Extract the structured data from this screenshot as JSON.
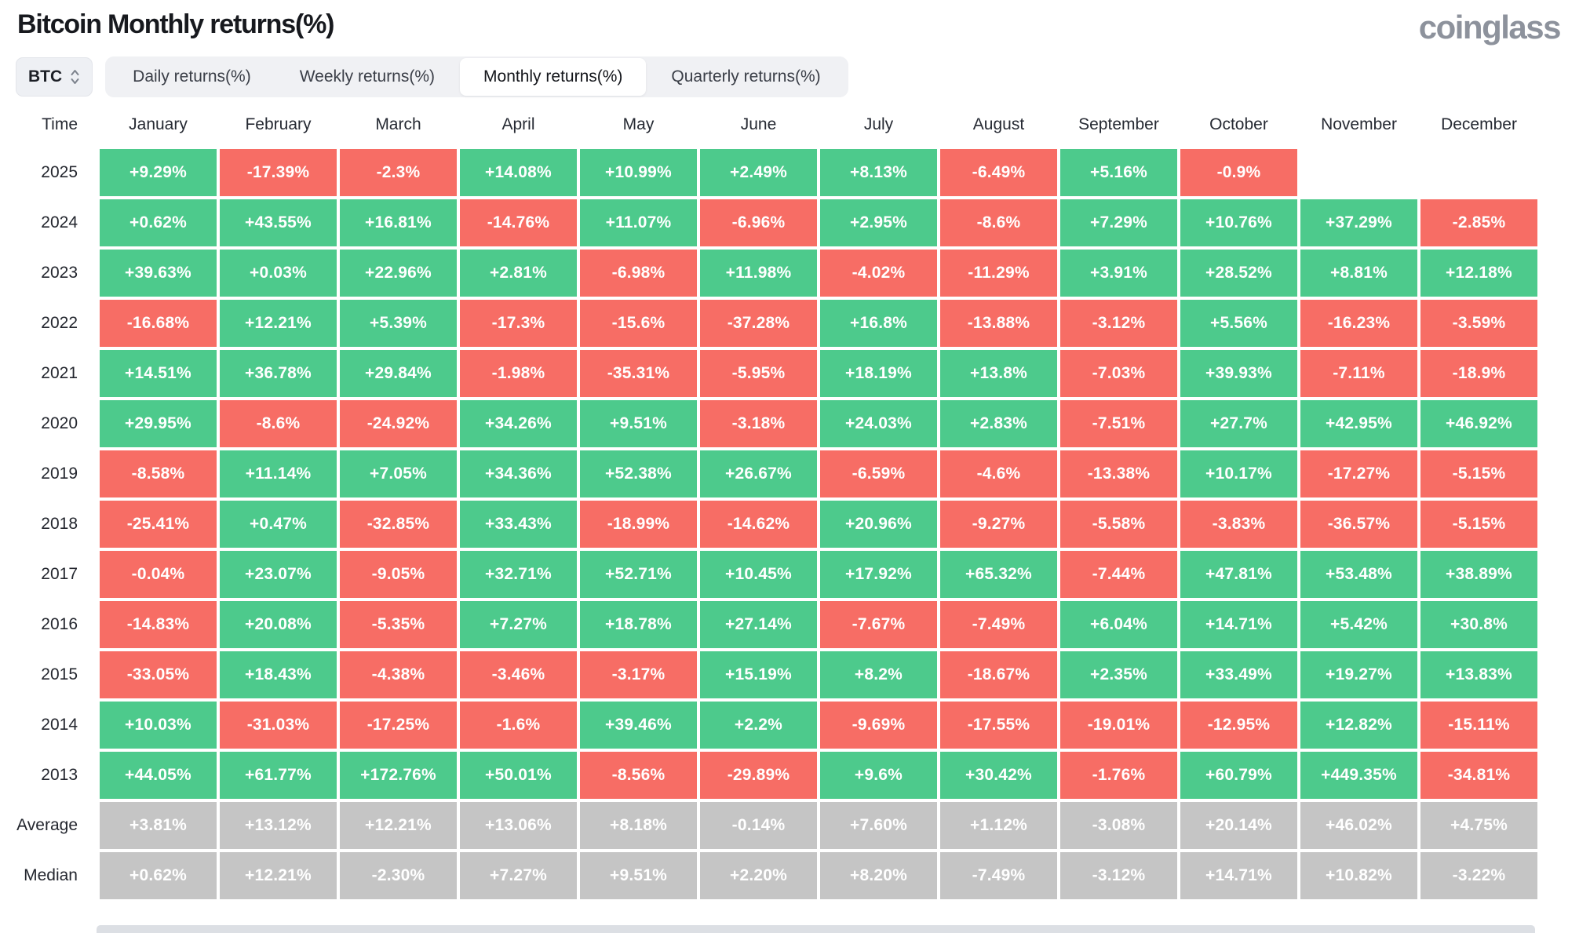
{
  "header": {
    "title": "Bitcoin Monthly returns(%)",
    "logo": "coinglass"
  },
  "controls": {
    "coin_selector": "BTC",
    "tabs": [
      {
        "label": "Daily returns(%)",
        "active": false
      },
      {
        "label": "Weekly returns(%)",
        "active": false
      },
      {
        "label": "Monthly returns(%)",
        "active": true
      },
      {
        "label": "Quarterly returns(%)",
        "active": false
      }
    ]
  },
  "colors": {
    "positive": "#4dca8c",
    "negative": "#f76d65",
    "stat": "#c5c5c5"
  },
  "table": {
    "time_header": "Time",
    "columns": [
      "January",
      "February",
      "March",
      "April",
      "May",
      "June",
      "July",
      "August",
      "September",
      "October",
      "November",
      "December"
    ],
    "rows": [
      {
        "label": "2025",
        "values": [
          "+9.29%",
          "-17.39%",
          "-2.3%",
          "+14.08%",
          "+10.99%",
          "+2.49%",
          "+8.13%",
          "-6.49%",
          "+5.16%",
          "-0.9%",
          "",
          ""
        ]
      },
      {
        "label": "2024",
        "values": [
          "+0.62%",
          "+43.55%",
          "+16.81%",
          "-14.76%",
          "+11.07%",
          "-6.96%",
          "+2.95%",
          "-8.6%",
          "+7.29%",
          "+10.76%",
          "+37.29%",
          "-2.85%"
        ]
      },
      {
        "label": "2023",
        "values": [
          "+39.63%",
          "+0.03%",
          "+22.96%",
          "+2.81%",
          "-6.98%",
          "+11.98%",
          "-4.02%",
          "-11.29%",
          "+3.91%",
          "+28.52%",
          "+8.81%",
          "+12.18%"
        ]
      },
      {
        "label": "2022",
        "values": [
          "-16.68%",
          "+12.21%",
          "+5.39%",
          "-17.3%",
          "-15.6%",
          "-37.28%",
          "+16.8%",
          "-13.88%",
          "-3.12%",
          "+5.56%",
          "-16.23%",
          "-3.59%"
        ]
      },
      {
        "label": "2021",
        "values": [
          "+14.51%",
          "+36.78%",
          "+29.84%",
          "-1.98%",
          "-35.31%",
          "-5.95%",
          "+18.19%",
          "+13.8%",
          "-7.03%",
          "+39.93%",
          "-7.11%",
          "-18.9%"
        ]
      },
      {
        "label": "2020",
        "values": [
          "+29.95%",
          "-8.6%",
          "-24.92%",
          "+34.26%",
          "+9.51%",
          "-3.18%",
          "+24.03%",
          "+2.83%",
          "-7.51%",
          "+27.7%",
          "+42.95%",
          "+46.92%"
        ]
      },
      {
        "label": "2019",
        "values": [
          "-8.58%",
          "+11.14%",
          "+7.05%",
          "+34.36%",
          "+52.38%",
          "+26.67%",
          "-6.59%",
          "-4.6%",
          "-13.38%",
          "+10.17%",
          "-17.27%",
          "-5.15%"
        ]
      },
      {
        "label": "2018",
        "values": [
          "-25.41%",
          "+0.47%",
          "-32.85%",
          "+33.43%",
          "-18.99%",
          "-14.62%",
          "+20.96%",
          "-9.27%",
          "-5.58%",
          "-3.83%",
          "-36.57%",
          "-5.15%"
        ]
      },
      {
        "label": "2017",
        "values": [
          "-0.04%",
          "+23.07%",
          "-9.05%",
          "+32.71%",
          "+52.71%",
          "+10.45%",
          "+17.92%",
          "+65.32%",
          "-7.44%",
          "+47.81%",
          "+53.48%",
          "+38.89%"
        ]
      },
      {
        "label": "2016",
        "values": [
          "-14.83%",
          "+20.08%",
          "-5.35%",
          "+7.27%",
          "+18.78%",
          "+27.14%",
          "-7.67%",
          "-7.49%",
          "+6.04%",
          "+14.71%",
          "+5.42%",
          "+30.8%"
        ]
      },
      {
        "label": "2015",
        "values": [
          "-33.05%",
          "+18.43%",
          "-4.38%",
          "-3.46%",
          "-3.17%",
          "+15.19%",
          "+8.2%",
          "-18.67%",
          "+2.35%",
          "+33.49%",
          "+19.27%",
          "+13.83%"
        ]
      },
      {
        "label": "2014",
        "values": [
          "+10.03%",
          "-31.03%",
          "-17.25%",
          "-1.6%",
          "+39.46%",
          "+2.2%",
          "-9.69%",
          "-17.55%",
          "-19.01%",
          "-12.95%",
          "+12.82%",
          "-15.11%"
        ]
      },
      {
        "label": "2013",
        "values": [
          "+44.05%",
          "+61.77%",
          "+172.76%",
          "+50.01%",
          "-8.56%",
          "-29.89%",
          "+9.6%",
          "+30.42%",
          "-1.76%",
          "+60.79%",
          "+449.35%",
          "-34.81%"
        ]
      },
      {
        "label": "Average",
        "stat": true,
        "values": [
          "+3.81%",
          "+13.12%",
          "+12.21%",
          "+13.06%",
          "+8.18%",
          "-0.14%",
          "+7.60%",
          "+1.12%",
          "-3.08%",
          "+20.14%",
          "+46.02%",
          "+4.75%"
        ]
      },
      {
        "label": "Median",
        "stat": true,
        "values": [
          "+0.62%",
          "+12.21%",
          "-2.30%",
          "+7.27%",
          "+9.51%",
          "+2.20%",
          "+8.20%",
          "-7.49%",
          "-3.12%",
          "+14.71%",
          "+10.82%",
          "-3.22%"
        ]
      }
    ]
  }
}
